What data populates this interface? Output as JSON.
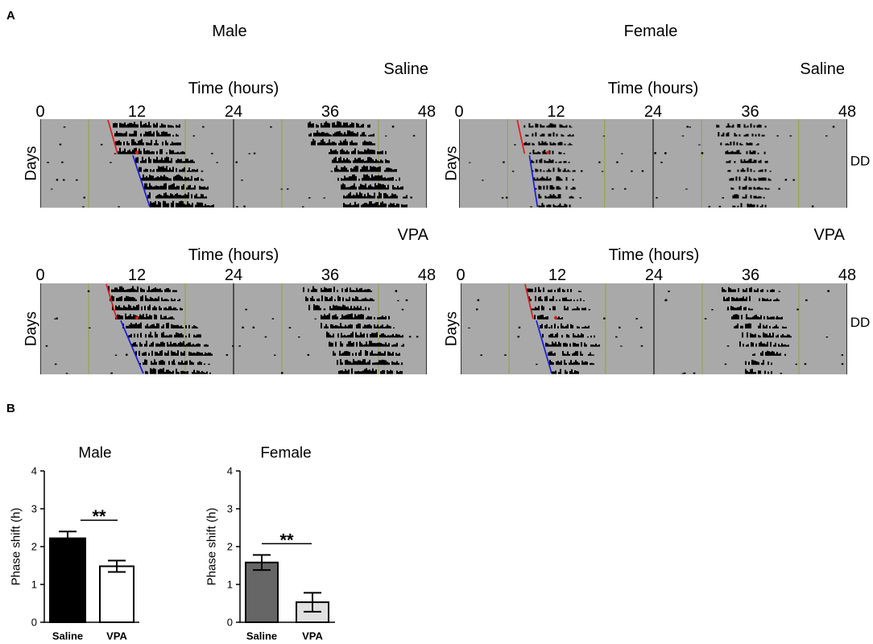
{
  "figure": {
    "panel_a": "A",
    "panel_b": "B",
    "column_titles": [
      "Male",
      "Female"
    ]
  },
  "chart_data": [
    {
      "type": "actogram",
      "condition": "Saline",
      "xlabel": "Time (hours)",
      "ylabel": "Days",
      "x_ticks": [
        "0",
        "12",
        "24",
        "36",
        "48"
      ],
      "xlim": [
        0,
        48
      ],
      "days": 10,
      "light_lines_h": [
        6,
        18,
        30,
        42
      ],
      "midline_h": 24,
      "onset_fit_red": {
        "start_h": 8.4,
        "start_day": 1,
        "end_h": 9.6,
        "end_day": 4
      },
      "onset_fit_blue": {
        "start_h": 11.5,
        "start_day": 5,
        "end_h": 13.6,
        "end_day": 10
      },
      "pulse": {
        "hour": 12.0,
        "day": 4
      },
      "activity_h": [
        [
          9.0,
          17.2
        ],
        [
          9.2,
          17.0
        ],
        [
          9.3,
          17.4
        ],
        [
          9.6,
          17.8
        ],
        [
          11.8,
          19.0
        ],
        [
          12.2,
          19.4
        ],
        [
          12.5,
          20.2
        ],
        [
          12.9,
          20.8
        ],
        [
          13.3,
          21.0
        ],
        [
          13.6,
          21.5
        ]
      ],
      "colors": {
        "background": "#a9a9a9",
        "light_line": "#93a23c",
        "red_fit": "#e0191b",
        "blue_fit": "#1a1adb"
      }
    },
    {
      "type": "actogram",
      "condition": "Saline",
      "xlabel": "Time (hours)",
      "ylabel": "Days",
      "side_label": "DD",
      "x_ticks": [
        "0",
        "12",
        "24",
        "36",
        "48"
      ],
      "xlim": [
        0,
        48
      ],
      "days": 10,
      "light_lines_h": [
        6,
        18,
        30,
        42
      ],
      "midline_h": 24,
      "onset_fit_red": {
        "start_h": 7.2,
        "start_day": 1,
        "end_h": 8.1,
        "end_day": 4
      },
      "onset_fit_blue": {
        "start_h": 8.7,
        "start_day": 5,
        "end_h": 9.7,
        "end_day": 10
      },
      "pulse": {
        "hour": 11.0,
        "day": 4
      },
      "activity_h": [
        [
          7.6,
          13.8
        ],
        [
          7.8,
          14.0
        ],
        [
          8.0,
          13.9
        ],
        [
          8.3,
          13.0
        ],
        [
          8.9,
          13.8
        ],
        [
          9.0,
          14.2
        ],
        [
          9.2,
          14.5
        ],
        [
          9.4,
          14.6
        ],
        [
          9.6,
          14.3
        ],
        [
          9.8,
          14.0
        ]
      ],
      "colors": {
        "background": "#a9a9a9",
        "light_line": "#93a23c",
        "red_fit": "#e0191b",
        "blue_fit": "#1a1adb"
      }
    },
    {
      "type": "actogram",
      "condition": "VPA",
      "xlabel": "Time (hours)",
      "ylabel": "Days",
      "x_ticks": [
        "0",
        "12",
        "24",
        "36",
        "48"
      ],
      "xlim": [
        0,
        48
      ],
      "days": 10,
      "light_lines_h": [
        6,
        18,
        30,
        42
      ],
      "midline_h": 24,
      "onset_fit_red": {
        "start_h": 8.2,
        "start_day": 1,
        "end_h": 9.5,
        "end_day": 4
      },
      "onset_fit_blue": {
        "start_h": 10.0,
        "start_day": 5,
        "end_h": 12.8,
        "end_day": 10
      },
      "pulse": {
        "hour": 12.0,
        "day": 4
      },
      "activity_h": [
        [
          8.4,
          17.0
        ],
        [
          8.6,
          17.2
        ],
        [
          8.9,
          17.5
        ],
        [
          9.3,
          16.8
        ],
        [
          10.2,
          19.5
        ],
        [
          10.8,
          20.0
        ],
        [
          11.3,
          21.0
        ],
        [
          11.8,
          21.2
        ],
        [
          12.3,
          20.6
        ],
        [
          12.8,
          21.0
        ]
      ],
      "colors": {
        "background": "#a9a9a9",
        "light_line": "#93a23c",
        "red_fit": "#e0191b",
        "blue_fit": "#1a1adb"
      }
    },
    {
      "type": "actogram",
      "condition": "VPA",
      "xlabel": "Time (hours)",
      "ylabel": "Days",
      "side_label": "DD",
      "x_ticks": [
        "0",
        "12",
        "24",
        "36",
        "48"
      ],
      "xlim": [
        0,
        48
      ],
      "days": 10,
      "light_lines_h": [
        6,
        18,
        30,
        42
      ],
      "midline_h": 24,
      "onset_fit_red": {
        "start_h": 8.0,
        "start_day": 1,
        "end_h": 9.0,
        "end_day": 4
      },
      "onset_fit_blue": {
        "start_h": 9.4,
        "start_day": 5,
        "end_h": 11.3,
        "end_day": 10
      },
      "pulse": {
        "hour": 11.8,
        "day": 4
      },
      "activity_h": [
        [
          8.2,
          14.8
        ],
        [
          8.4,
          15.2
        ],
        [
          8.6,
          15.5
        ],
        [
          8.9,
          12.5
        ],
        [
          9.6,
          16.0
        ],
        [
          9.9,
          16.5
        ],
        [
          10.3,
          17.2
        ],
        [
          10.6,
          16.8
        ],
        [
          11.0,
          16.4
        ],
        [
          11.3,
          15.0
        ]
      ],
      "colors": {
        "background": "#a9a9a9",
        "light_line": "#93a23c",
        "red_fit": "#e0191b",
        "blue_fit": "#1a1adb"
      }
    },
    {
      "type": "bar",
      "title": "Male",
      "categories": [
        "Saline",
        "VPA"
      ],
      "values": [
        2.22,
        1.48
      ],
      "errors": [
        0.18,
        0.15
      ],
      "ylabel": "Phase shift (h)",
      "ylim": [
        0,
        4
      ],
      "y_ticks": [
        "0",
        "1",
        "2",
        "3",
        "4"
      ],
      "colors": [
        "#000000",
        "#ffffff"
      ],
      "significance": "**"
    },
    {
      "type": "bar",
      "title": "Female",
      "categories": [
        "Saline",
        "VPA"
      ],
      "values": [
        1.58,
        0.53
      ],
      "errors": [
        0.2,
        0.25
      ],
      "ylabel": "Phase shift (h)",
      "ylim": [
        0,
        4
      ],
      "y_ticks": [
        "0",
        "1",
        "2",
        "3",
        "4"
      ],
      "colors": [
        "#666666",
        "#e0e0e0"
      ],
      "significance": "**"
    }
  ]
}
